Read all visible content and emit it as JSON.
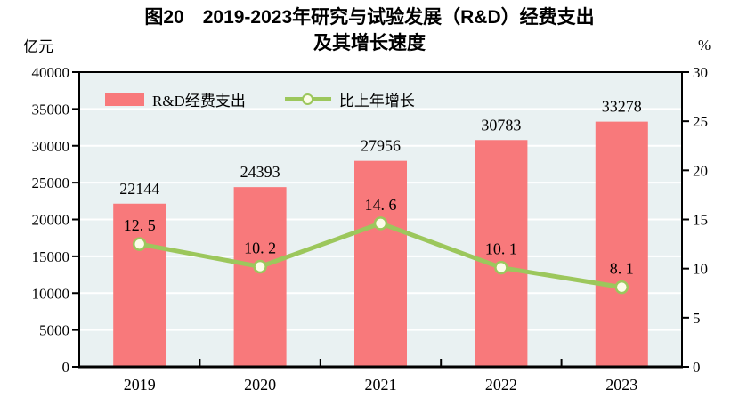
{
  "title": {
    "line1": "图20　2019-2023年研究与试验发展（R&D）经费支出",
    "line2": "及其增长速度"
  },
  "chart_data": {
    "type": "bar+line",
    "categories": [
      "2019",
      "2020",
      "2021",
      "2022",
      "2023"
    ],
    "series": [
      {
        "name": "R&D经费支出",
        "type": "bar",
        "axis": "left",
        "values": [
          22144,
          24393,
          27956,
          30783,
          33278
        ],
        "labels": [
          "22144",
          "24393",
          "27956",
          "30783",
          "33278"
        ],
        "color": "#F8797B",
        "label_color": "#2E3A42"
      },
      {
        "name": "比上年增长",
        "type": "line",
        "axis": "right",
        "values": [
          12.5,
          10.2,
          14.6,
          10.1,
          8.1
        ],
        "labels": [
          "12. 5",
          "10. 2",
          "14. 6",
          "10. 1",
          "8. 1"
        ],
        "color": "#9CC75C",
        "marker_fill": "#FCFCE8",
        "label_color": "#7E2B28"
      }
    ],
    "left_axis": {
      "unit": "亿元",
      "min": 0,
      "max": 40000,
      "step": 5000,
      "ticks": [
        "0",
        "5000",
        "10000",
        "15000",
        "20000",
        "25000",
        "30000",
        "35000",
        "40000"
      ]
    },
    "right_axis": {
      "unit": "%",
      "min": 0,
      "max": 30,
      "step": 5,
      "ticks": [
        "0",
        "5",
        "10",
        "15",
        "20",
        "25",
        "30"
      ]
    },
    "plot": {
      "bg": "#E9F1F2",
      "grid": "#FFFFFF",
      "border": "#000000",
      "grid_style": "horizontal-white",
      "legend_position": "top-left-inside"
    }
  }
}
